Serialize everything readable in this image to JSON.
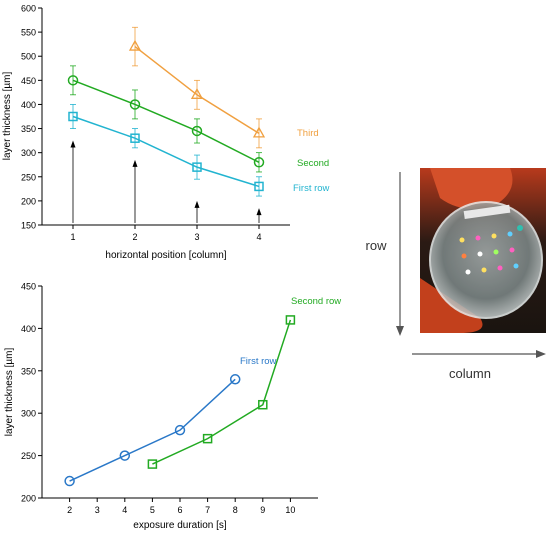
{
  "chart_data": [
    {
      "type": "line",
      "xlabel": "horizontal position [column]",
      "ylabel": "layer thickness [µm]",
      "xlim": [
        0.5,
        4.5
      ],
      "ylim": [
        150,
        600
      ],
      "xticks": [
        1,
        2,
        3,
        4
      ],
      "yticks": [
        150,
        200,
        250,
        300,
        350,
        400,
        450,
        500,
        550,
        600
      ],
      "grid": false,
      "series": [
        {
          "name": "Third",
          "color": "#f0a040",
          "marker": "triangle",
          "x": [
            2,
            3,
            4
          ],
          "values": [
            520,
            420,
            340
          ],
          "error": [
            40,
            30,
            30
          ]
        },
        {
          "name": "Second",
          "color": "#22aa22",
          "marker": "circle",
          "x": [
            1,
            2,
            3,
            4
          ],
          "values": [
            450,
            400,
            345,
            280
          ],
          "error": [
            30,
            30,
            25,
            20
          ]
        },
        {
          "name": "First row",
          "color": "#22b4d0",
          "marker": "square",
          "x": [
            1,
            2,
            3,
            4
          ],
          "values": [
            375,
            330,
            270,
            230
          ],
          "error": [
            25,
            20,
            25,
            20
          ]
        }
      ],
      "annotations": {
        "arrows_at_x": [
          1,
          2,
          3,
          4
        ]
      }
    },
    {
      "type": "line",
      "xlabel": "exposure duration [s]",
      "ylabel": "layer thickness [µm]",
      "xlim": [
        1,
        11
      ],
      "ylim": [
        200,
        450
      ],
      "xticks": [
        2,
        3,
        4,
        5,
        6,
        7,
        8,
        9,
        10
      ],
      "yticks": [
        200,
        250,
        300,
        350,
        400,
        450
      ],
      "grid": false,
      "series": [
        {
          "name": "First row",
          "color": "#2a78c8",
          "marker": "circle",
          "x": [
            2,
            4,
            6,
            8
          ],
          "values": [
            220,
            250,
            280,
            340
          ]
        },
        {
          "name": "Second row",
          "color": "#22aa22",
          "marker": "square",
          "x": [
            5,
            7,
            9,
            10
          ],
          "values": [
            240,
            270,
            310,
            410
          ]
        }
      ]
    }
  ],
  "photo_axes": {
    "vertical_label": "row",
    "horizontal_label": "column"
  },
  "colors": {
    "axis": "#000000",
    "arrow": "#555555"
  }
}
